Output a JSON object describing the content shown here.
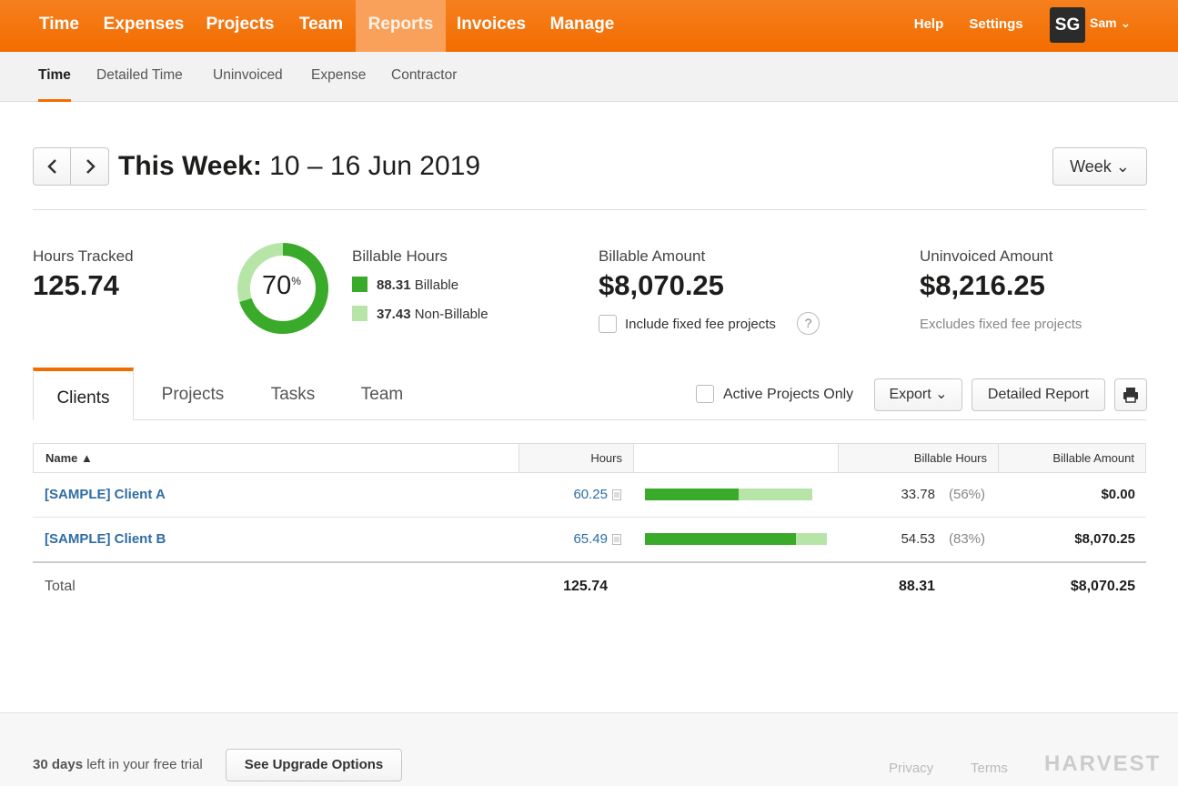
{
  "topnav": {
    "items": [
      "Time",
      "Expenses",
      "Projects",
      "Team",
      "Reports",
      "Invoices",
      "Manage"
    ],
    "help": "Help",
    "settings": "Settings",
    "avatar_initials": "SG",
    "user_name": "Sam ⌄"
  },
  "subnav": [
    "Time",
    "Detailed Time",
    "Uninvoiced",
    "Expense",
    "Contractor"
  ],
  "period": {
    "label": "This Week:",
    "range": "10 – 16 Jun 2019",
    "prev": "‹",
    "next": "›",
    "view_select": "Week ⌄"
  },
  "summary": {
    "hours_tracked_label": "Hours Tracked",
    "hours_tracked": "125.74",
    "donut_percent": "70",
    "donut_sup": "%",
    "donut_fraction": 0.7,
    "billable_hours_label": "Billable Hours",
    "billable_value": "88.31",
    "billable_text": "Billable",
    "nonbillable_value": "37.43",
    "nonbillable_text": "Non-Billable",
    "billable_amount_label": "Billable Amount",
    "billable_amount": "$8,070.25",
    "include_fixed": "Include fixed fee projects",
    "help_glyph": "?",
    "uninvoiced_label": "Uninvoiced Amount",
    "uninvoiced_amount": "$8,216.25",
    "excludes_note": "Excludes fixed fee projects"
  },
  "tabs": [
    "Clients",
    "Projects",
    "Tasks",
    "Team"
  ],
  "controls": {
    "active_only": "Active Projects Only",
    "export": "Export ⌄",
    "detailed_report": "Detailed Report"
  },
  "table": {
    "headers": {
      "name": "Name ▲",
      "hours": "Hours",
      "billable_hours": "Billable Hours",
      "billable_amount": "Billable Amount"
    },
    "rows": [
      {
        "name": "[SAMPLE] Client A",
        "hours": "60.25",
        "billable_hours": "33.78",
        "pct": "(56%)",
        "amount": "$0.00",
        "billable_fraction": 0.56
      },
      {
        "name": "[SAMPLE] Client B",
        "hours": "65.49",
        "billable_hours": "54.53",
        "pct": "(83%)",
        "amount": "$8,070.25",
        "billable_fraction": 0.83
      }
    ],
    "total": {
      "label": "Total",
      "hours": "125.74",
      "billable_hours": "88.31",
      "amount": "$8,070.25"
    }
  },
  "footer": {
    "trial_days": "30 days",
    "trial_text": " left in your free trial",
    "upgrade": "See Upgrade Options",
    "privacy": "Privacy",
    "terms": "Terms",
    "brand": "HARVEST"
  },
  "colors": {
    "orange": "#f36c00",
    "billable": "#3aaa2a",
    "nonbillable": "#b7e5a8",
    "link": "#2e6da4"
  },
  "icons": [
    "chevron-left-icon",
    "chevron-right-icon",
    "chevron-down-icon",
    "print-icon",
    "note-icon",
    "help-icon",
    "sort-up-icon"
  ]
}
